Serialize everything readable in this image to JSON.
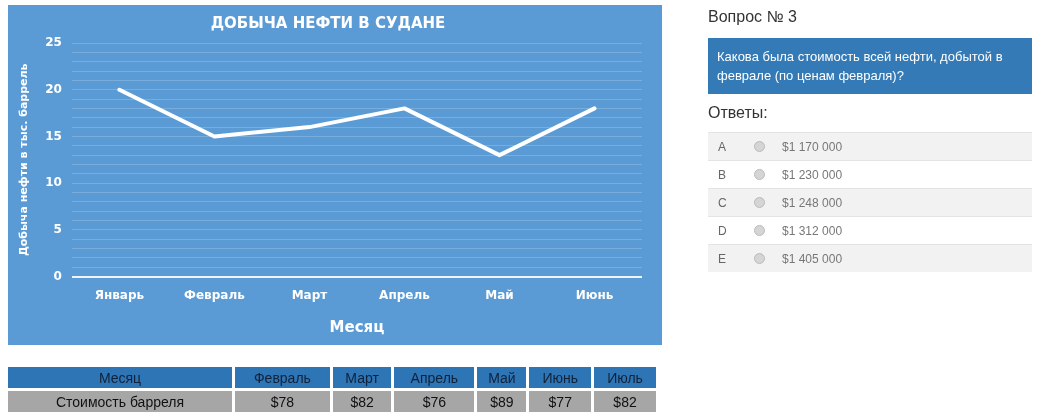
{
  "chart_data": [
    {
      "type": "line",
      "title": "ДОБЫЧА НЕФТИ В СУДАНЕ",
      "xlabel": "Месяц",
      "ylabel": "Добыча нефти в тыс. баррель",
      "categories": [
        "Январь",
        "Февраль",
        "Март",
        "Апрель",
        "Май",
        "Июнь"
      ],
      "series": [
        {
          "color": "#ffffff",
          "values": [
            20,
            15,
            16,
            18,
            13,
            18
          ]
        }
      ],
      "ylim": [
        0,
        25
      ],
      "yticks": [
        0,
        {
          "value": 1,
          "label": null
        },
        {
          "value": 2,
          "label": null
        },
        {
          "value": 3,
          "label": null
        },
        {
          "value": 4,
          "label": null
        },
        5,
        {
          "value": 6,
          "label": null
        },
        {
          "value": 7,
          "label": null
        },
        {
          "value": 8,
          "label": null
        },
        {
          "value": 9,
          "label": null
        },
        10,
        {
          "value": 11,
          "label": null
        },
        {
          "value": 12,
          "label": null
        },
        {
          "value": 13,
          "label": null
        },
        {
          "value": 14,
          "label": null
        },
        15,
        {
          "value": 16,
          "label": null
        },
        {
          "value": 17,
          "label": null
        },
        {
          "value": 18,
          "label": null
        },
        {
          "value": 19,
          "label": null
        },
        20,
        {
          "value": 21,
          "label": null
        },
        {
          "value": 22,
          "label": null
        },
        {
          "value": 23,
          "label": null
        },
        {
          "value": 24,
          "label": null
        },
        25
      ],
      "grid": "y",
      "marker": "none",
      "line_style": "solid"
    },
    {
      "type": "other",
      "xlabel": "Месяц",
      "ylabel": "Стоимость барреля",
      "categories": [
        "Февраль",
        "Март",
        "Апрель",
        "Май",
        "Июнь",
        "Июль"
      ],
      "value_labels": [
        "$78",
        "$82",
        "$76",
        "$89",
        "$77",
        "$82"
      ]
    },
    {
      "type": "other",
      "title": "Вопрос № 3",
      "subtitle": "Какова была стоимость всей нефти, добытой в феврале (по ценам февраля)?",
      "legend_title": "Ответы:",
      "categories": [
        "A",
        "B",
        "C",
        "D",
        "E"
      ],
      "annotations": [
        "$1 170 000",
        "$1 230 000",
        "$1 248 000",
        "$1 312 000",
        "$1 405 000"
      ]
    }
  ]
}
